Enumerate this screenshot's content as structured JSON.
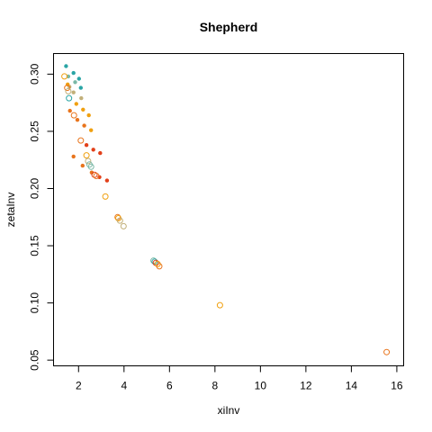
{
  "chart_data": {
    "type": "scatter",
    "title": "Shepherd",
    "xlabel": "xiInv",
    "ylabel": "zetaInv",
    "xlim": [
      0.9,
      16.3
    ],
    "ylim": [
      0.045,
      0.318
    ],
    "xticks": [
      2,
      4,
      6,
      8,
      10,
      12,
      14,
      16
    ],
    "yticks": [
      0.05,
      0.1,
      0.15,
      0.2,
      0.25,
      0.3
    ],
    "ytick_labels": [
      "0.05",
      "0.10",
      "0.15",
      "0.20",
      "0.25",
      "0.30"
    ],
    "grid": false,
    "colors": [
      "#2aa5a5",
      "#79b8a6",
      "#c2b07a",
      "#f0a010",
      "#e8741c",
      "#e2401a"
    ],
    "points": [
      {
        "x": 1.45,
        "y": 0.307,
        "c": 0,
        "s": "filled"
      },
      {
        "x": 1.78,
        "y": 0.301,
        "c": 0,
        "s": "filled"
      },
      {
        "x": 2.02,
        "y": 0.296,
        "c": 0,
        "s": "filled"
      },
      {
        "x": 1.55,
        "y": 0.298,
        "c": 1,
        "s": "filled"
      },
      {
        "x": 1.85,
        "y": 0.293,
        "c": 1,
        "s": "filled"
      },
      {
        "x": 2.1,
        "y": 0.288,
        "c": 0,
        "s": "filled"
      },
      {
        "x": 1.6,
        "y": 0.289,
        "c": 2,
        "s": "filled"
      },
      {
        "x": 1.78,
        "y": 0.284,
        "c": 2,
        "s": "filled"
      },
      {
        "x": 2.12,
        "y": 0.279,
        "c": 2,
        "s": "filled"
      },
      {
        "x": 1.52,
        "y": 0.291,
        "c": 3,
        "s": "filled"
      },
      {
        "x": 1.9,
        "y": 0.274,
        "c": 3,
        "s": "filled"
      },
      {
        "x": 2.2,
        "y": 0.269,
        "c": 3,
        "s": "filled"
      },
      {
        "x": 2.45,
        "y": 0.264,
        "c": 3,
        "s": "filled"
      },
      {
        "x": 1.62,
        "y": 0.268,
        "c": 4,
        "s": "filled"
      },
      {
        "x": 1.95,
        "y": 0.26,
        "c": 4,
        "s": "filled"
      },
      {
        "x": 2.25,
        "y": 0.255,
        "c": 4,
        "s": "filled"
      },
      {
        "x": 2.55,
        "y": 0.251,
        "c": 3,
        "s": "filled"
      },
      {
        "x": 2.35,
        "y": 0.238,
        "c": 5,
        "s": "filled"
      },
      {
        "x": 2.65,
        "y": 0.234,
        "c": 5,
        "s": "filled"
      },
      {
        "x": 2.95,
        "y": 0.231,
        "c": 5,
        "s": "filled"
      },
      {
        "x": 1.78,
        "y": 0.228,
        "c": 4,
        "s": "filled"
      },
      {
        "x": 2.18,
        "y": 0.22,
        "c": 4,
        "s": "filled"
      },
      {
        "x": 2.58,
        "y": 0.214,
        "c": 4,
        "s": "filled"
      },
      {
        "x": 2.92,
        "y": 0.21,
        "c": 5,
        "s": "filled"
      },
      {
        "x": 3.25,
        "y": 0.207,
        "c": 5,
        "s": "filled"
      },
      {
        "x": 1.38,
        "y": 0.298,
        "c": 3,
        "s": "open"
      },
      {
        "x": 1.5,
        "y": 0.288,
        "c": 4,
        "s": "open"
      },
      {
        "x": 1.55,
        "y": 0.285,
        "c": 2,
        "s": "open"
      },
      {
        "x": 1.58,
        "y": 0.279,
        "c": 0,
        "s": "open"
      },
      {
        "x": 1.8,
        "y": 0.264,
        "c": 4,
        "s": "open"
      },
      {
        "x": 2.1,
        "y": 0.242,
        "c": 4,
        "s": "open"
      },
      {
        "x": 2.35,
        "y": 0.229,
        "c": 3,
        "s": "open"
      },
      {
        "x": 2.42,
        "y": 0.224,
        "c": 2,
        "s": "open"
      },
      {
        "x": 2.48,
        "y": 0.221,
        "c": 1,
        "s": "open"
      },
      {
        "x": 2.55,
        "y": 0.219,
        "c": 1,
        "s": "open"
      },
      {
        "x": 2.7,
        "y": 0.212,
        "c": 5,
        "s": "open"
      },
      {
        "x": 2.78,
        "y": 0.211,
        "c": 4,
        "s": "open"
      },
      {
        "x": 3.18,
        "y": 0.193,
        "c": 3,
        "s": "open"
      },
      {
        "x": 3.72,
        "y": 0.175,
        "c": 4,
        "s": "open"
      },
      {
        "x": 3.75,
        "y": 0.174,
        "c": 3,
        "s": "open"
      },
      {
        "x": 3.82,
        "y": 0.172,
        "c": 2,
        "s": "open"
      },
      {
        "x": 3.98,
        "y": 0.167,
        "c": 2,
        "s": "open"
      },
      {
        "x": 5.3,
        "y": 0.137,
        "c": 1,
        "s": "open"
      },
      {
        "x": 5.35,
        "y": 0.136,
        "c": 0,
        "s": "open"
      },
      {
        "x": 5.4,
        "y": 0.135,
        "c": 5,
        "s": "open"
      },
      {
        "x": 5.48,
        "y": 0.134,
        "c": 3,
        "s": "open"
      },
      {
        "x": 5.55,
        "y": 0.132,
        "c": 4,
        "s": "open"
      },
      {
        "x": 8.22,
        "y": 0.098,
        "c": 3,
        "s": "open"
      },
      {
        "x": 15.55,
        "y": 0.057,
        "c": 4,
        "s": "open"
      }
    ]
  }
}
